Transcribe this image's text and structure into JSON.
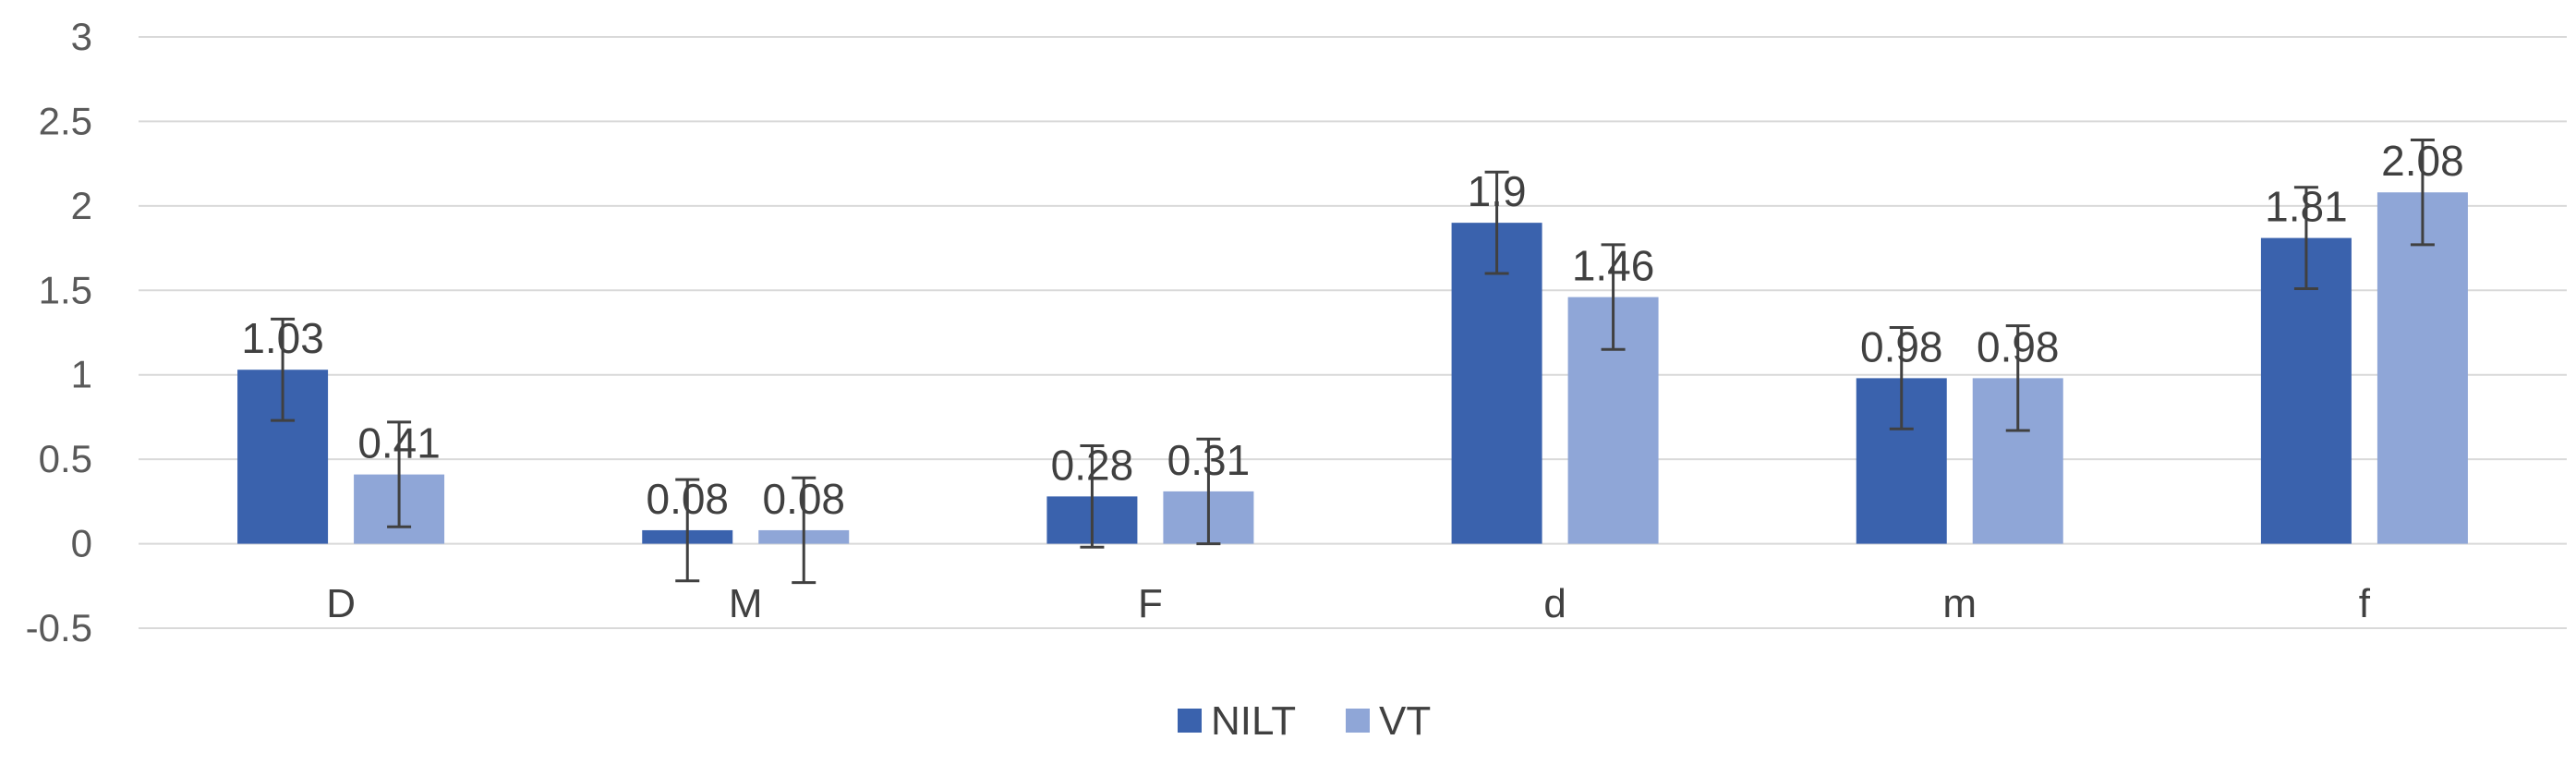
{
  "chart_data": {
    "type": "bar",
    "categories": [
      "D",
      "M",
      "F",
      "d",
      "m",
      "f"
    ],
    "series": [
      {
        "name": "NILT",
        "color": "#3a62ad",
        "values": [
          1.03,
          0.08,
          0.28,
          1.9,
          0.98,
          1.81
        ],
        "labels": [
          "1.03",
          "0.08",
          "0.28",
          "1.9",
          "0.98",
          "1.81"
        ],
        "errors": [
          0.3,
          0.3,
          0.3,
          0.3,
          0.3,
          0.3
        ]
      },
      {
        "name": "VT",
        "color": "#8fa6d7",
        "values": [
          0.41,
          0.08,
          0.31,
          1.46,
          0.98,
          2.08
        ],
        "labels": [
          "0.41",
          "0.08",
          "0.31",
          "1.46",
          "0.98",
          "2.08"
        ],
        "errors": [
          0.31,
          0.31,
          0.31,
          0.31,
          0.31,
          0.31
        ]
      }
    ],
    "ylim": [
      -0.5,
      3
    ],
    "yticks": [
      "3",
      "2.5",
      "2",
      "1.5",
      "1",
      "0.5",
      "0",
      "-0.5"
    ],
    "ytick_values": [
      3,
      2.5,
      2,
      1.5,
      1,
      0.5,
      0,
      -0.5
    ],
    "grid": true,
    "legend_position": "bottom",
    "title": "",
    "xlabel": "",
    "ylabel": ""
  }
}
